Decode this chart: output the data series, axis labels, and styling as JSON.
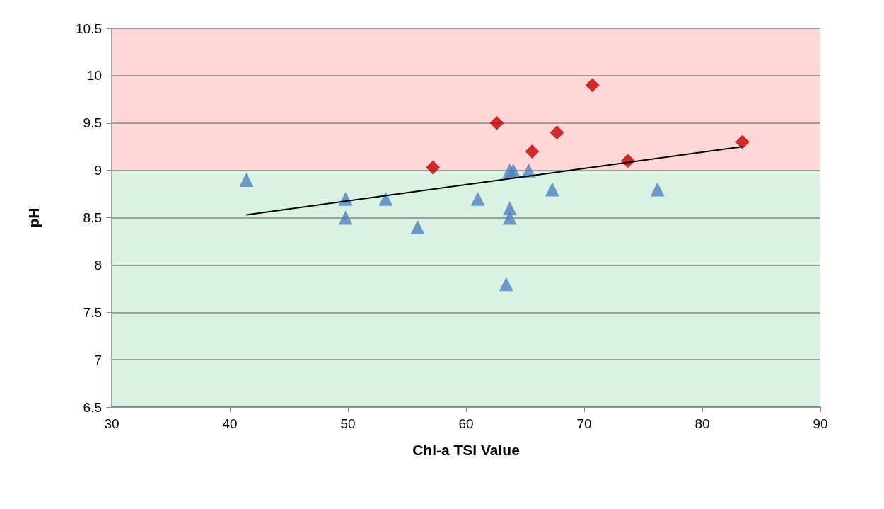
{
  "chart_data": {
    "type": "scatter",
    "xlabel": "Chl-a TSI Value",
    "ylabel": "pH",
    "xlim": [
      30,
      90
    ],
    "xticks": [
      30,
      40,
      50,
      60,
      70,
      80,
      90
    ],
    "ylim": [
      6.5,
      10.5
    ],
    "yticks": [
      6.5,
      7,
      7.5,
      8,
      8.5,
      9,
      9.5,
      10,
      10.5
    ],
    "grid": "y",
    "bands": [
      {
        "axis": "y",
        "from": 6.5,
        "to": 9,
        "color": "#d9f2e3"
      },
      {
        "axis": "y",
        "from": 9,
        "to": 10.5,
        "color": "#ffd7d7"
      }
    ],
    "series": [
      {
        "color": "#4f81bd",
        "marker": "triangle",
        "x": [
          41.4,
          49.8,
          49.8,
          53.2,
          55.9,
          61.0,
          63.4,
          63.7,
          63.7,
          63.7,
          64.0,
          65.3,
          67.3,
          76.2
        ],
        "values": [
          8.9,
          8.7,
          8.5,
          8.7,
          8.4,
          8.7,
          7.8,
          8.6,
          8.5,
          9.0,
          9.0,
          9.0,
          8.8,
          8.8
        ]
      },
      {
        "color": "#c00000",
        "marker": "diamond",
        "x": [
          57.2,
          62.6,
          65.6,
          67.7,
          70.7,
          73.7,
          83.4
        ],
        "values": [
          9.03,
          9.5,
          9.2,
          9.4,
          9.9,
          9.1,
          9.3
        ]
      },
      {
        "type": "line",
        "color": "#000000",
        "marker": "none",
        "line_style": "solid",
        "x": [
          41.4,
          83.4
        ],
        "values": [
          8.53,
          9.25
        ]
      }
    ]
  }
}
